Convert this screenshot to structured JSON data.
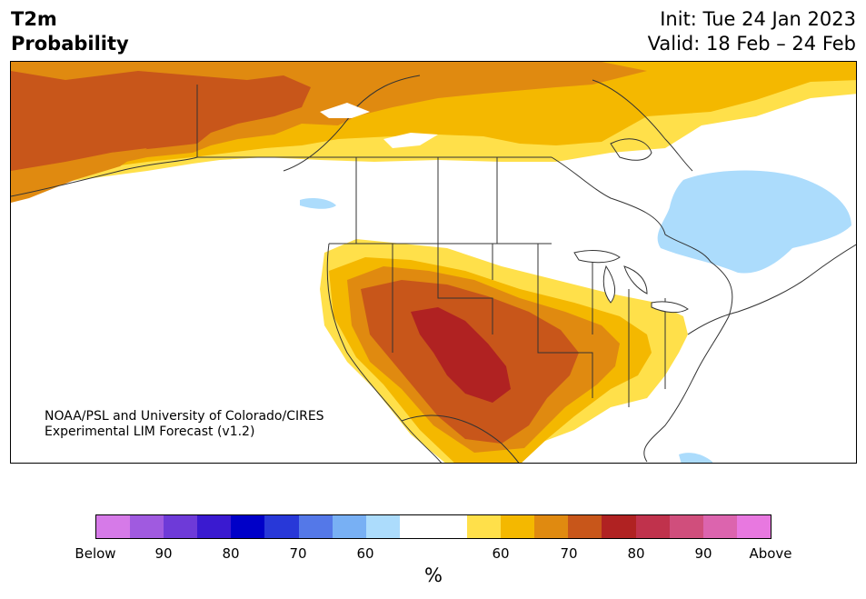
{
  "title": {
    "variable": "T2m",
    "quantity": "Probability",
    "init": "Init: Tue 24 Jan 2023",
    "valid": "Valid: 18 Feb – 24 Feb"
  },
  "credit": {
    "line1": "NOAA/PSL and University of Colorado/CIRES",
    "line2": "Experimental LIM Forecast (v1.2)"
  },
  "colorbar": {
    "unit": "%",
    "colors": [
      "#d67ae8",
      "#a05ae0",
      "#6e3ad8",
      "#3a1ad0",
      "#0000c8",
      "#2838d8",
      "#5478e8",
      "#78b0f4",
      "#acdcfc",
      "#ffffff",
      "#ffffff",
      "#ffe04a",
      "#f4b800",
      "#e08a10",
      "#c8561a",
      "#b02222",
      "#c0324c",
      "#d04e7c",
      "#dc64ae",
      "#e878e0"
    ],
    "tick_labels": [
      "Below",
      "90",
      "80",
      "70",
      "60",
      "60",
      "70",
      "80",
      "90",
      "Above"
    ]
  },
  "map": {
    "region": "North America",
    "category_colors": {
      "above_50_60": "#ffe04a",
      "above_60_70": "#f4b800",
      "above_70_80": "#e08a10",
      "above_80_90": "#c8561a",
      "above_90_100": "#b02222",
      "below_50_60": "#acdcfc",
      "near_normal": "#ffffff"
    }
  }
}
